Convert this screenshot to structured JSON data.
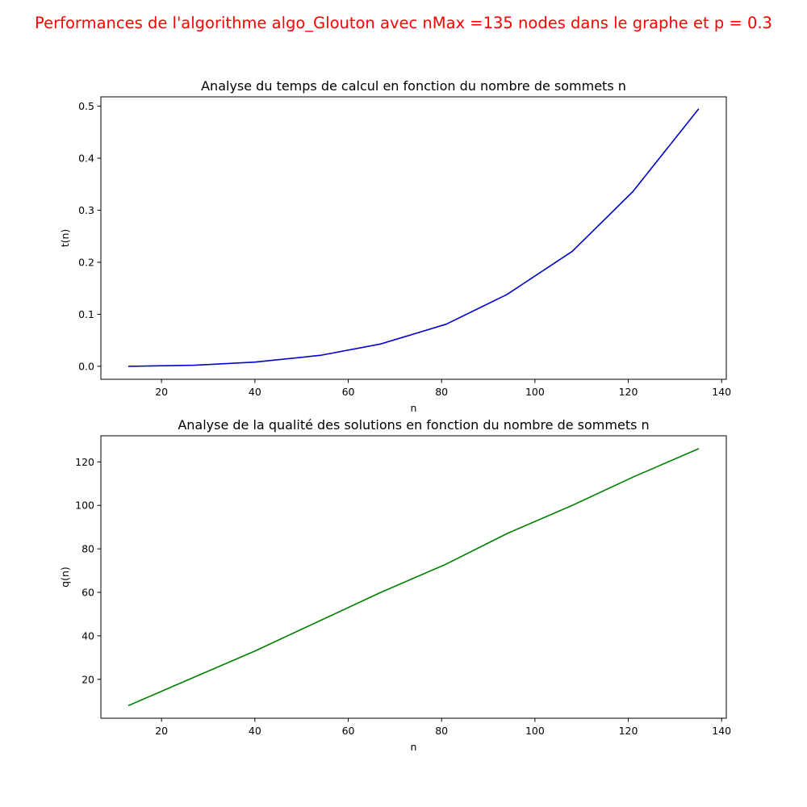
{
  "figure": {
    "suptitle": "Performances de l'algorithme algo_Glouton avec nMax =135 nodes dans le graphe et p = 0.3",
    "suptitle_color": "#ff0000"
  },
  "chart_data": [
    {
      "type": "line",
      "title": "Analyse du temps de calcul en fonction du nombre de sommets n",
      "xlabel": "n",
      "ylabel": "t(n)",
      "xlim": [
        7.0,
        141.0
      ],
      "ylim": [
        -0.025,
        0.518
      ],
      "xticks": [
        20,
        40,
        60,
        80,
        100,
        120,
        140
      ],
      "yticks": [
        0.0,
        0.1,
        0.2,
        0.3,
        0.4,
        0.5
      ],
      "ytick_labels": [
        "0.0",
        "0.1",
        "0.2",
        "0.3",
        "0.4",
        "0.5"
      ],
      "grid": false,
      "series": [
        {
          "color": "#0000cc",
          "x": [
            13,
            27,
            40,
            54,
            67,
            81,
            94,
            108,
            121,
            135
          ],
          "y": [
            0.0,
            0.002,
            0.008,
            0.021,
            0.043,
            0.081,
            0.138,
            0.221,
            0.336,
            0.494
          ]
        }
      ]
    },
    {
      "type": "line",
      "title": "Analyse de la qualité des solutions en fonction du nombre de sommets n",
      "xlabel": "n",
      "ylabel": "q(n)",
      "xlim": [
        7.0,
        141.0
      ],
      "ylim": [
        2.1,
        132.0
      ],
      "xticks": [
        20,
        40,
        60,
        80,
        100,
        120,
        140
      ],
      "yticks": [
        20,
        40,
        60,
        80,
        100,
        120
      ],
      "ytick_labels": [
        "20",
        "40",
        "60",
        "80",
        "100",
        "120"
      ],
      "grid": false,
      "series": [
        {
          "color": "#008000",
          "x": [
            13,
            27,
            40,
            54,
            67,
            81,
            94,
            108,
            121,
            135
          ],
          "y": [
            8,
            21,
            33,
            47,
            60,
            73,
            87,
            100,
            113,
            126
          ]
        }
      ]
    }
  ]
}
